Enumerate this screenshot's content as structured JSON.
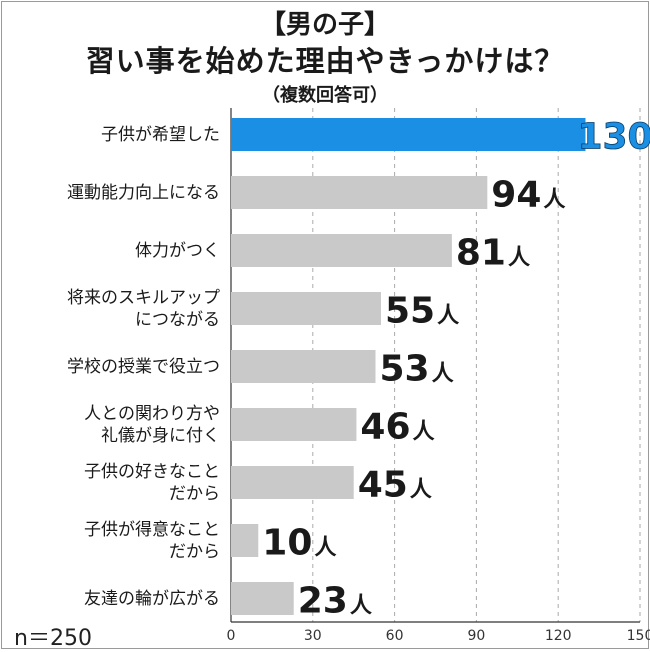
{
  "title_line1": "【男の子】",
  "title_line2": "習い事を始めた理由やきっかけは？",
  "subtitle": "（複数回答可）",
  "sample_size": "n＝250",
  "chart_data": {
    "type": "bar",
    "orientation": "horizontal",
    "categories": [
      "子供が希望した",
      "運動能力向上になる",
      "体力がつく",
      "将来のスキルアップにつながる",
      "学校の授業で役立つ",
      "人との関わり方や礼儀が身に付く",
      "子供の好きなことだから",
      "子供が得意なことだから",
      "友達の輪が広がる"
    ],
    "category_lines": [
      [
        "子供が希望した"
      ],
      [
        "運動能力向上になる"
      ],
      [
        "体力がつく"
      ],
      [
        "将来のスキルアップ",
        "につながる"
      ],
      [
        "学校の授業で役立つ"
      ],
      [
        "人との関わり方や",
        "礼儀が身に付く"
      ],
      [
        "子供の好きなこと",
        "だから"
      ],
      [
        "子供が得意なこと",
        "だから"
      ],
      [
        "友達の輪が広がる"
      ]
    ],
    "values": [
      130,
      94,
      81,
      55,
      53,
      46,
      45,
      10,
      23
    ],
    "unit": "人",
    "x_ticks": [
      0,
      30,
      60,
      90,
      120,
      150
    ],
    "xlim": [
      0,
      150
    ],
    "grid": "vertical dashed",
    "highlight_index": 0,
    "colors": {
      "highlight": "#1a8fe3",
      "bar": "#c9c9c9",
      "label_highlight": "#1a8fe3",
      "label": "#1a1a1a",
      "grid": "#aaaaaa",
      "axis": "#333333"
    }
  }
}
